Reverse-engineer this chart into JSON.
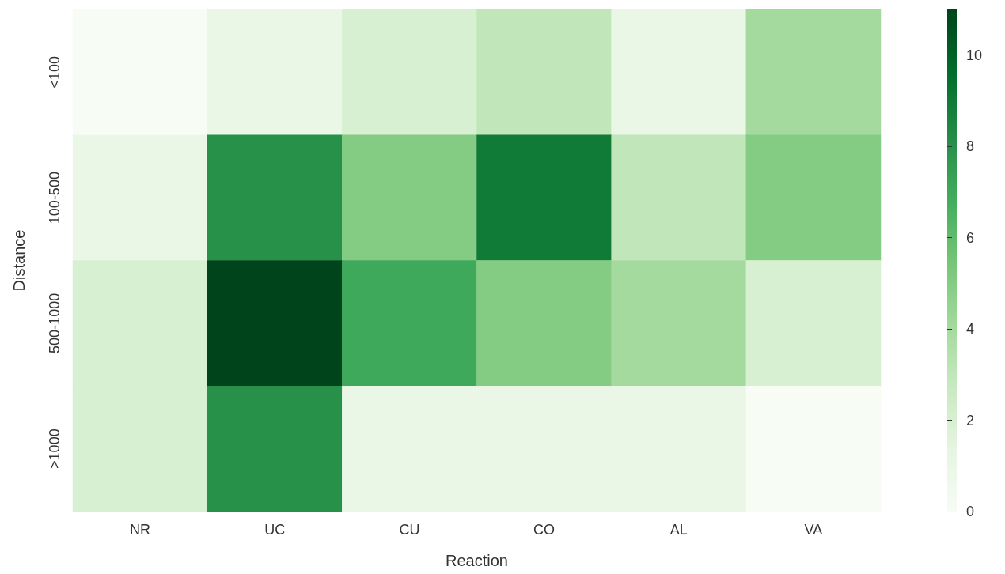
{
  "chart_data": {
    "type": "heatmap",
    "xlabel": "Reaction",
    "ylabel": "Distance",
    "categories": [
      "NR",
      "UC",
      "CU",
      "CO",
      "AL",
      "VA"
    ],
    "y_categories": [
      "<100",
      "100-500",
      "500-1000",
      ">1000"
    ],
    "cells": [
      [
        0,
        1,
        2,
        3,
        1,
        4
      ],
      [
        1,
        8,
        5,
        9,
        3,
        5
      ],
      [
        2,
        11,
        7,
        5,
        4,
        2
      ],
      [
        2,
        8,
        1,
        1,
        1,
        0
      ]
    ],
    "clim": [
      0,
      11
    ],
    "cticks": [
      0,
      2,
      4,
      6,
      8,
      10
    ]
  }
}
